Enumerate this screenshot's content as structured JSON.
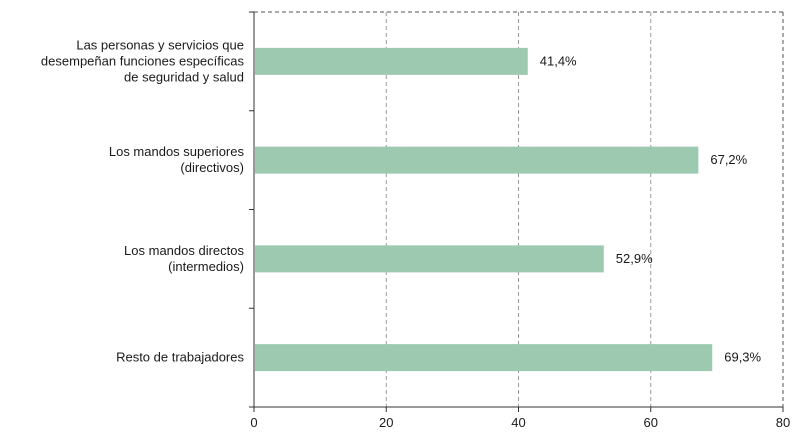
{
  "chart_data": {
    "type": "bar",
    "orientation": "horizontal",
    "title": "",
    "xlabel": "",
    "ylabel": "",
    "xlim": [
      0,
      80
    ],
    "xticks": [
      0,
      20,
      40,
      60,
      80
    ],
    "grid": true,
    "bar_color": "#9cc9b0",
    "categories": [
      [
        "Las personas y servicios que",
        "desempeñan funciones específicas",
        "de seguridad y salud"
      ],
      [
        "Los mandos superiores",
        "(directivos)"
      ],
      [
        "Los mandos directos",
        "(intermedios)"
      ],
      [
        "Resto de trabajadores"
      ]
    ],
    "values": [
      41.4,
      67.2,
      52.9,
      69.3
    ],
    "value_labels": [
      "41,4%",
      "67,2%",
      "52,9%",
      "69,3%"
    ]
  }
}
